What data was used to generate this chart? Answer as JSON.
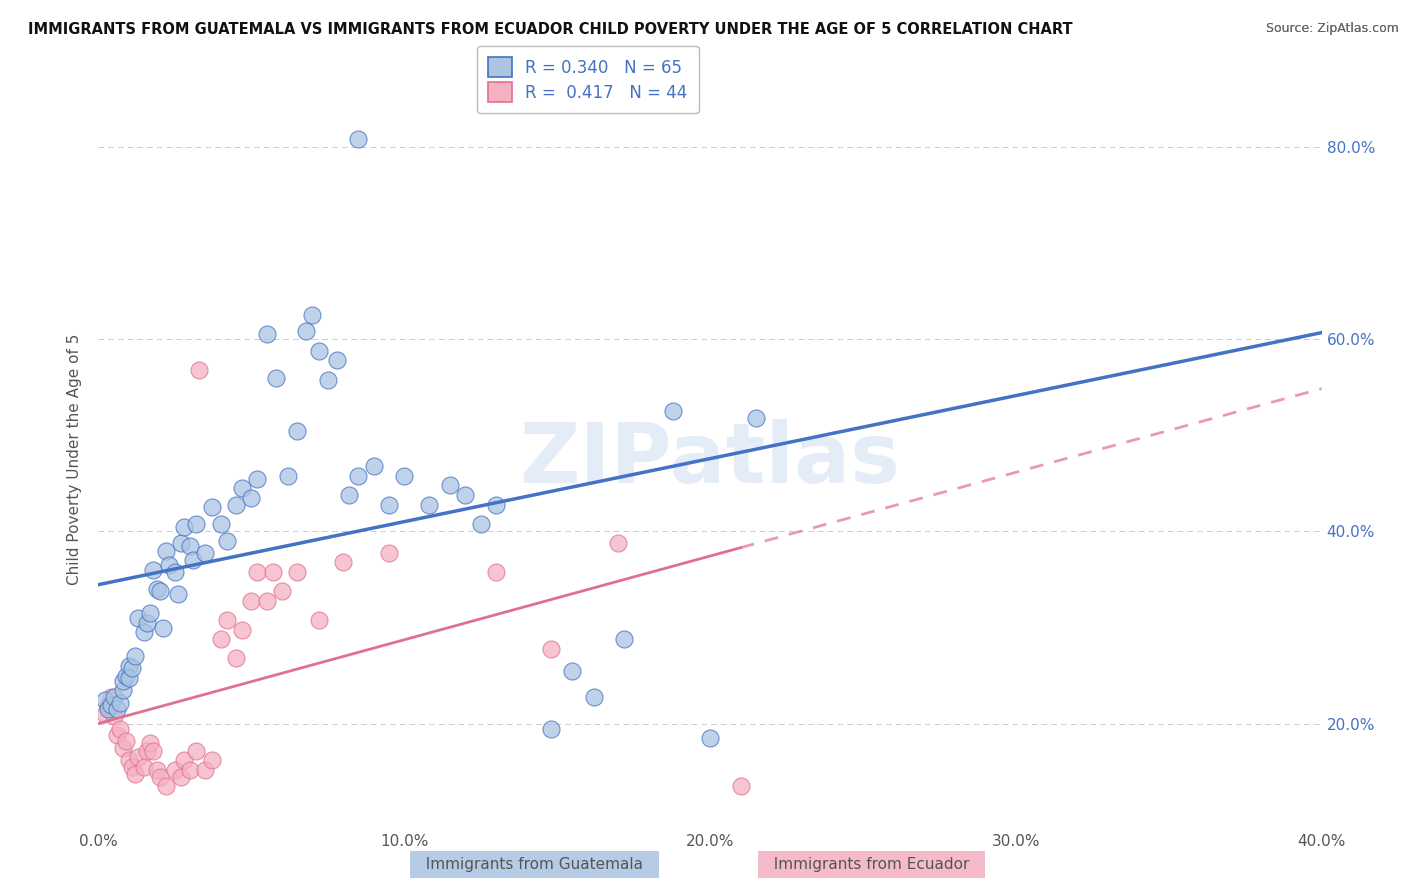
{
  "title": "IMMIGRANTS FROM GUATEMALA VS IMMIGRANTS FROM ECUADOR CHILD POVERTY UNDER THE AGE OF 5 CORRELATION CHART",
  "source": "Source: ZipAtlas.com",
  "ylabel": "Child Poverty Under the Age of 5",
  "R_guatemala": 0.34,
  "N_guatemala": 65,
  "R_ecuador": 0.417,
  "N_ecuador": 44,
  "color_guatemala": "#aac4e2",
  "color_ecuador": "#f5b0c2",
  "color_line_guatemala": "#4472c4",
  "color_line_ecuador": "#e07090",
  "watermark_text": "ZIPatlas",
  "xmin": 0.0,
  "xmax": 0.4,
  "ymin": 0.09,
  "ymax": 0.86,
  "ytick_vals": [
    0.2,
    0.4,
    0.6,
    0.8
  ],
  "ytick_labels": [
    "20.0%",
    "40.0%",
    "60.0%",
    "80.0%"
  ],
  "xtick_vals": [
    0.0,
    0.1,
    0.2,
    0.3,
    0.4
  ],
  "xtick_labels": [
    "0.0%",
    "10.0%",
    "20.0%",
    "30.0%",
    "40.0%"
  ],
  "legend_label1": "Immigrants from Guatemala",
  "legend_label2": "Immigrants from Ecuador",
  "scatter_guatemala": [
    [
      0.002,
      0.225
    ],
    [
      0.003,
      0.215
    ],
    [
      0.004,
      0.22
    ],
    [
      0.005,
      0.228
    ],
    [
      0.006,
      0.215
    ],
    [
      0.007,
      0.222
    ],
    [
      0.008,
      0.235
    ],
    [
      0.008,
      0.245
    ],
    [
      0.009,
      0.25
    ],
    [
      0.01,
      0.26
    ],
    [
      0.01,
      0.248
    ],
    [
      0.011,
      0.258
    ],
    [
      0.012,
      0.27
    ],
    [
      0.013,
      0.31
    ],
    [
      0.015,
      0.295
    ],
    [
      0.016,
      0.305
    ],
    [
      0.017,
      0.315
    ],
    [
      0.018,
      0.36
    ],
    [
      0.019,
      0.34
    ],
    [
      0.02,
      0.338
    ],
    [
      0.021,
      0.3
    ],
    [
      0.022,
      0.38
    ],
    [
      0.023,
      0.365
    ],
    [
      0.025,
      0.358
    ],
    [
      0.026,
      0.335
    ],
    [
      0.027,
      0.388
    ],
    [
      0.028,
      0.405
    ],
    [
      0.03,
      0.385
    ],
    [
      0.031,
      0.37
    ],
    [
      0.032,
      0.408
    ],
    [
      0.035,
      0.378
    ],
    [
      0.037,
      0.425
    ],
    [
      0.04,
      0.408
    ],
    [
      0.042,
      0.39
    ],
    [
      0.045,
      0.428
    ],
    [
      0.047,
      0.445
    ],
    [
      0.05,
      0.435
    ],
    [
      0.052,
      0.455
    ],
    [
      0.055,
      0.605
    ],
    [
      0.058,
      0.56
    ],
    [
      0.062,
      0.458
    ],
    [
      0.065,
      0.505
    ],
    [
      0.068,
      0.608
    ],
    [
      0.07,
      0.625
    ],
    [
      0.072,
      0.588
    ],
    [
      0.075,
      0.558
    ],
    [
      0.078,
      0.578
    ],
    [
      0.082,
      0.438
    ],
    [
      0.085,
      0.458
    ],
    [
      0.09,
      0.468
    ],
    [
      0.095,
      0.428
    ],
    [
      0.1,
      0.458
    ],
    [
      0.108,
      0.428
    ],
    [
      0.115,
      0.448
    ],
    [
      0.12,
      0.438
    ],
    [
      0.125,
      0.408
    ],
    [
      0.13,
      0.428
    ],
    [
      0.148,
      0.195
    ],
    [
      0.155,
      0.255
    ],
    [
      0.162,
      0.228
    ],
    [
      0.172,
      0.288
    ],
    [
      0.188,
      0.525
    ],
    [
      0.2,
      0.185
    ],
    [
      0.215,
      0.518
    ],
    [
      0.085,
      0.808
    ]
  ],
  "scatter_ecuador": [
    [
      0.002,
      0.21
    ],
    [
      0.003,
      0.218
    ],
    [
      0.004,
      0.228
    ],
    [
      0.005,
      0.208
    ],
    [
      0.006,
      0.188
    ],
    [
      0.007,
      0.195
    ],
    [
      0.008,
      0.175
    ],
    [
      0.009,
      0.182
    ],
    [
      0.01,
      0.162
    ],
    [
      0.011,
      0.155
    ],
    [
      0.012,
      0.148
    ],
    [
      0.013,
      0.165
    ],
    [
      0.015,
      0.155
    ],
    [
      0.016,
      0.172
    ],
    [
      0.017,
      0.18
    ],
    [
      0.018,
      0.172
    ],
    [
      0.019,
      0.152
    ],
    [
      0.02,
      0.145
    ],
    [
      0.022,
      0.135
    ],
    [
      0.025,
      0.152
    ],
    [
      0.027,
      0.145
    ],
    [
      0.028,
      0.162
    ],
    [
      0.03,
      0.152
    ],
    [
      0.032,
      0.172
    ],
    [
      0.033,
      0.568
    ],
    [
      0.035,
      0.152
    ],
    [
      0.037,
      0.162
    ],
    [
      0.04,
      0.288
    ],
    [
      0.042,
      0.308
    ],
    [
      0.045,
      0.268
    ],
    [
      0.047,
      0.298
    ],
    [
      0.05,
      0.328
    ],
    [
      0.052,
      0.358
    ],
    [
      0.055,
      0.328
    ],
    [
      0.057,
      0.358
    ],
    [
      0.06,
      0.338
    ],
    [
      0.065,
      0.358
    ],
    [
      0.072,
      0.308
    ],
    [
      0.08,
      0.368
    ],
    [
      0.095,
      0.378
    ],
    [
      0.13,
      0.358
    ],
    [
      0.148,
      0.278
    ],
    [
      0.17,
      0.388
    ],
    [
      0.21,
      0.135
    ]
  ]
}
